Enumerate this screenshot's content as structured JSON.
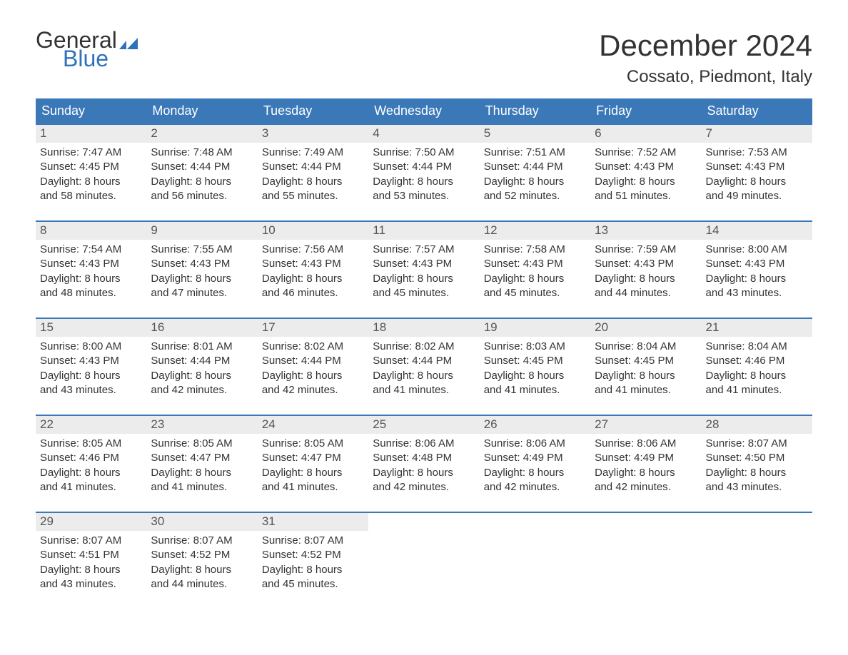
{
  "logo": {
    "word1": "General",
    "word2": "Blue",
    "word1_color": "#333333",
    "word2_color": "#2f72b9",
    "icon_color": "#2f72b9"
  },
  "title": "December 2024",
  "subtitle": "Cossato, Piedmont, Italy",
  "colors": {
    "header_bg": "#3a78b8",
    "header_text": "#ffffff",
    "daynum_bg": "#ececec",
    "daynum_border": "#3a78b8",
    "body_text": "#333333",
    "page_bg": "#ffffff"
  },
  "weekday_headers": [
    "Sunday",
    "Monday",
    "Tuesday",
    "Wednesday",
    "Thursday",
    "Friday",
    "Saturday"
  ],
  "weeks": [
    [
      {
        "n": "1",
        "sunrise": "7:47 AM",
        "sunset": "4:45 PM",
        "day_h": "8",
        "day_m": "58"
      },
      {
        "n": "2",
        "sunrise": "7:48 AM",
        "sunset": "4:44 PM",
        "day_h": "8",
        "day_m": "56"
      },
      {
        "n": "3",
        "sunrise": "7:49 AM",
        "sunset": "4:44 PM",
        "day_h": "8",
        "day_m": "55"
      },
      {
        "n": "4",
        "sunrise": "7:50 AM",
        "sunset": "4:44 PM",
        "day_h": "8",
        "day_m": "53"
      },
      {
        "n": "5",
        "sunrise": "7:51 AM",
        "sunset": "4:44 PM",
        "day_h": "8",
        "day_m": "52"
      },
      {
        "n": "6",
        "sunrise": "7:52 AM",
        "sunset": "4:43 PM",
        "day_h": "8",
        "day_m": "51"
      },
      {
        "n": "7",
        "sunrise": "7:53 AM",
        "sunset": "4:43 PM",
        "day_h": "8",
        "day_m": "49"
      }
    ],
    [
      {
        "n": "8",
        "sunrise": "7:54 AM",
        "sunset": "4:43 PM",
        "day_h": "8",
        "day_m": "48"
      },
      {
        "n": "9",
        "sunrise": "7:55 AM",
        "sunset": "4:43 PM",
        "day_h": "8",
        "day_m": "47"
      },
      {
        "n": "10",
        "sunrise": "7:56 AM",
        "sunset": "4:43 PM",
        "day_h": "8",
        "day_m": "46"
      },
      {
        "n": "11",
        "sunrise": "7:57 AM",
        "sunset": "4:43 PM",
        "day_h": "8",
        "day_m": "45"
      },
      {
        "n": "12",
        "sunrise": "7:58 AM",
        "sunset": "4:43 PM",
        "day_h": "8",
        "day_m": "45"
      },
      {
        "n": "13",
        "sunrise": "7:59 AM",
        "sunset": "4:43 PM",
        "day_h": "8",
        "day_m": "44"
      },
      {
        "n": "14",
        "sunrise": "8:00 AM",
        "sunset": "4:43 PM",
        "day_h": "8",
        "day_m": "43"
      }
    ],
    [
      {
        "n": "15",
        "sunrise": "8:00 AM",
        "sunset": "4:43 PM",
        "day_h": "8",
        "day_m": "43"
      },
      {
        "n": "16",
        "sunrise": "8:01 AM",
        "sunset": "4:44 PM",
        "day_h": "8",
        "day_m": "42"
      },
      {
        "n": "17",
        "sunrise": "8:02 AM",
        "sunset": "4:44 PM",
        "day_h": "8",
        "day_m": "42"
      },
      {
        "n": "18",
        "sunrise": "8:02 AM",
        "sunset": "4:44 PM",
        "day_h": "8",
        "day_m": "41"
      },
      {
        "n": "19",
        "sunrise": "8:03 AM",
        "sunset": "4:45 PM",
        "day_h": "8",
        "day_m": "41"
      },
      {
        "n": "20",
        "sunrise": "8:04 AM",
        "sunset": "4:45 PM",
        "day_h": "8",
        "day_m": "41"
      },
      {
        "n": "21",
        "sunrise": "8:04 AM",
        "sunset": "4:46 PM",
        "day_h": "8",
        "day_m": "41"
      }
    ],
    [
      {
        "n": "22",
        "sunrise": "8:05 AM",
        "sunset": "4:46 PM",
        "day_h": "8",
        "day_m": "41"
      },
      {
        "n": "23",
        "sunrise": "8:05 AM",
        "sunset": "4:47 PM",
        "day_h": "8",
        "day_m": "41"
      },
      {
        "n": "24",
        "sunrise": "8:05 AM",
        "sunset": "4:47 PM",
        "day_h": "8",
        "day_m": "41"
      },
      {
        "n": "25",
        "sunrise": "8:06 AM",
        "sunset": "4:48 PM",
        "day_h": "8",
        "day_m": "42"
      },
      {
        "n": "26",
        "sunrise": "8:06 AM",
        "sunset": "4:49 PM",
        "day_h": "8",
        "day_m": "42"
      },
      {
        "n": "27",
        "sunrise": "8:06 AM",
        "sunset": "4:49 PM",
        "day_h": "8",
        "day_m": "42"
      },
      {
        "n": "28",
        "sunrise": "8:07 AM",
        "sunset": "4:50 PM",
        "day_h": "8",
        "day_m": "43"
      }
    ],
    [
      {
        "n": "29",
        "sunrise": "8:07 AM",
        "sunset": "4:51 PM",
        "day_h": "8",
        "day_m": "43"
      },
      {
        "n": "30",
        "sunrise": "8:07 AM",
        "sunset": "4:52 PM",
        "day_h": "8",
        "day_m": "44"
      },
      {
        "n": "31",
        "sunrise": "8:07 AM",
        "sunset": "4:52 PM",
        "day_h": "8",
        "day_m": "45"
      },
      null,
      null,
      null,
      null
    ]
  ],
  "labels": {
    "sunrise_prefix": "Sunrise: ",
    "sunset_prefix": "Sunset: ",
    "daylight_prefix": "Daylight: ",
    "hours_word": " hours",
    "and_word": "and ",
    "minutes_word": " minutes."
  }
}
